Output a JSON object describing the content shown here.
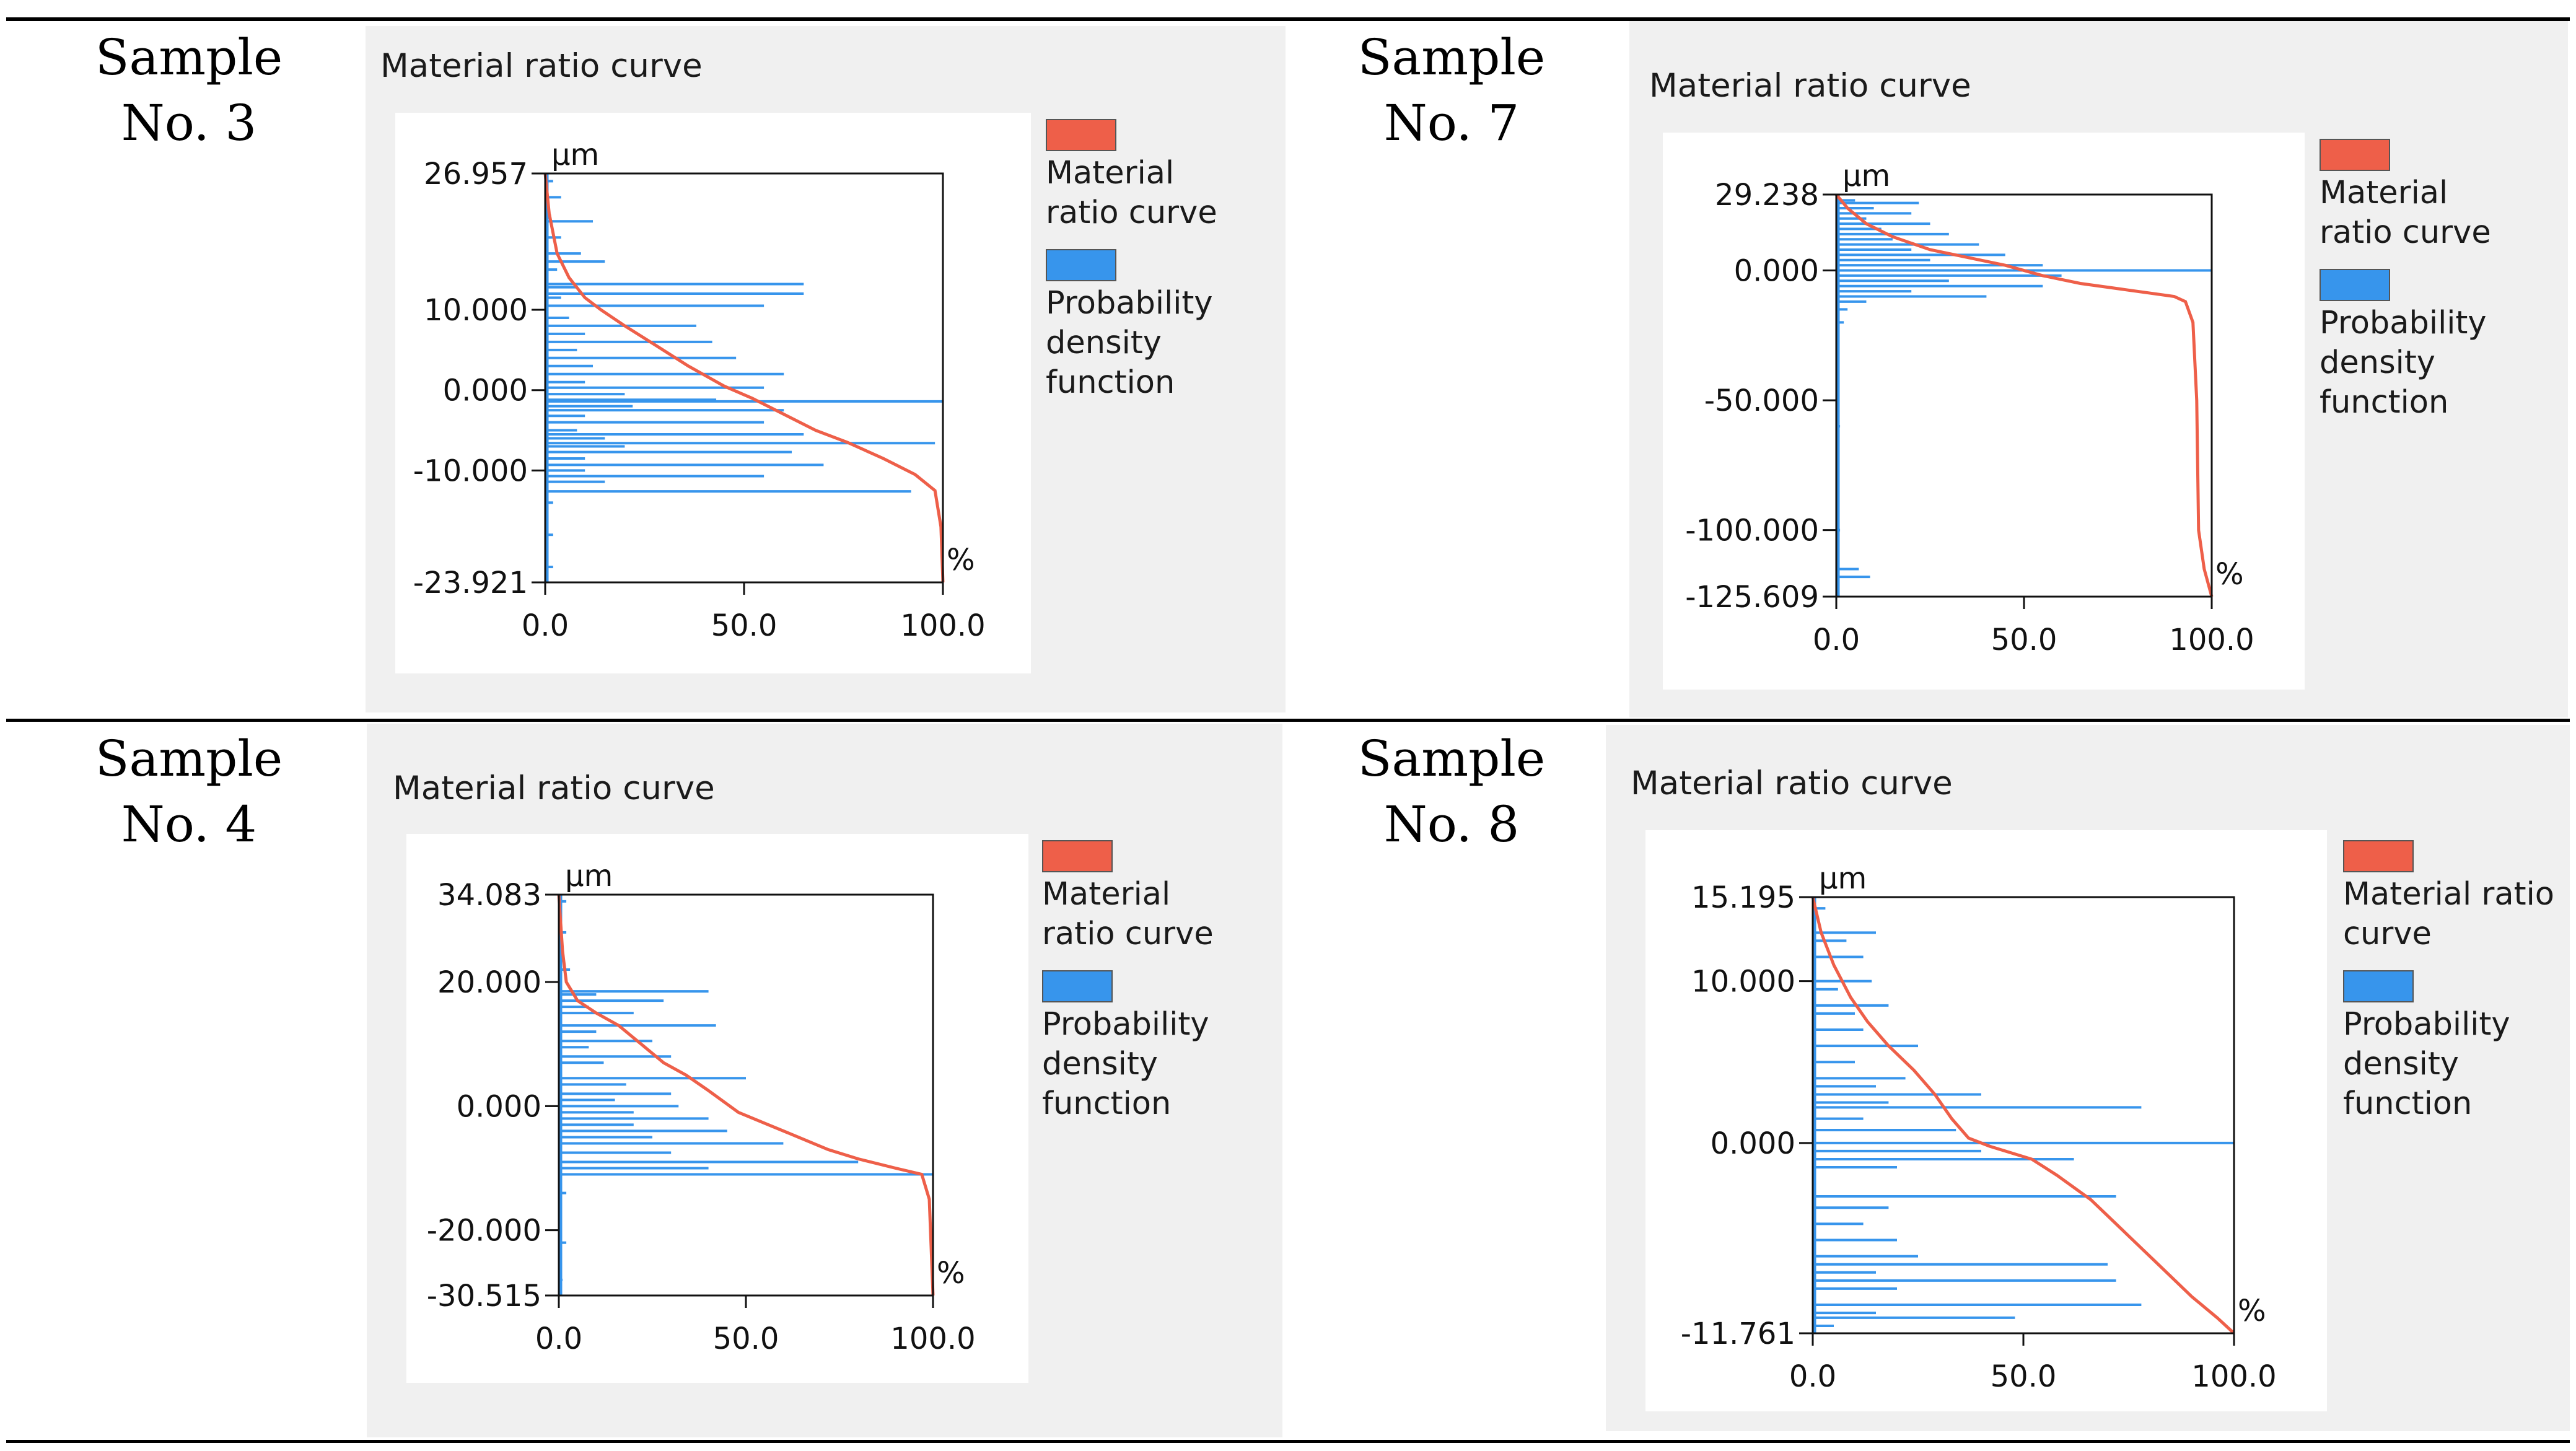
{
  "figure": {
    "panels": [
      {
        "sample_label_line1": "Sample",
        "sample_label_line2": "No. 3",
        "title": "Material ratio curve",
        "legend": {
          "material": "Material ratio curve",
          "pdf": "Probability density function"
        },
        "unit_y": "µm",
        "unit_x": "%"
      },
      {
        "sample_label_line1": "Sample",
        "sample_label_line2": "No. 7",
        "title": "Material ratio curve",
        "legend": {
          "material": "Material ratio curve",
          "pdf": "Probability density function"
        },
        "unit_y": "µm",
        "unit_x": "%"
      },
      {
        "sample_label_line1": "Sample",
        "sample_label_line2": "No. 4",
        "title": "Material ratio curve",
        "legend": {
          "material": "Material ratio curve",
          "pdf": "Probability density function"
        },
        "unit_y": "µm",
        "unit_x": "%"
      },
      {
        "sample_label_line1": "Sample",
        "sample_label_line2": "No. 8",
        "title": "Material ratio curve",
        "legend": {
          "material": "Material ratio curve",
          "pdf": "Probability density function"
        },
        "unit_y": "µm",
        "unit_x": "%"
      }
    ]
  },
  "colors": {
    "material": "#ee5f49",
    "pdf": "#3795ec",
    "axis": "#111111",
    "panel_bg": "#f0f0f0"
  },
  "chart_data": [
    {
      "type": "line",
      "title": "Material ratio curve",
      "sample": "No. 3",
      "xlabel": "%",
      "ylabel": "µm",
      "xlim": [
        0,
        100
      ],
      "ylim": [
        -23.921,
        26.957
      ],
      "xticks": [
        "0.0",
        "50.0",
        "100.0"
      ],
      "yticks": [
        {
          "value": 26.957,
          "label": "26.957"
        },
        {
          "value": 10.0,
          "label": "10.000"
        },
        {
          "value": 0.0,
          "label": "0.000"
        },
        {
          "value": -10.0,
          "label": "-10.000"
        },
        {
          "value": -23.921,
          "label": "-23.921"
        }
      ],
      "series": [
        {
          "name": "Material ratio curve",
          "type": "line",
          "points": [
            [
              0,
              26.957
            ],
            [
              1,
              22
            ],
            [
              3,
              17
            ],
            [
              6,
              14
            ],
            [
              10,
              11.5
            ],
            [
              14,
              10
            ],
            [
              20,
              8
            ],
            [
              28,
              5.5
            ],
            [
              36,
              3
            ],
            [
              45,
              0.5
            ],
            [
              52,
              -1
            ],
            [
              60,
              -3
            ],
            [
              68,
              -5
            ],
            [
              76,
              -6.5
            ],
            [
              85,
              -8.5
            ],
            [
              93,
              -10.5
            ],
            [
              98,
              -12.5
            ],
            [
              99.5,
              -17
            ],
            [
              100,
              -23.921
            ]
          ]
        },
        {
          "name": "Probability density function",
          "type": "pdf",
          "points": [
            [
              2,
              26
            ],
            [
              4,
              24
            ],
            [
              12,
              21
            ],
            [
              4,
              19
            ],
            [
              9,
              17
            ],
            [
              15,
              16
            ],
            [
              3,
              15
            ],
            [
              65,
              13.2
            ],
            [
              8,
              12.8
            ],
            [
              65,
              12
            ],
            [
              4,
              11.5
            ],
            [
              55,
              10.5
            ],
            [
              6,
              9
            ],
            [
              38,
              8
            ],
            [
              10,
              7
            ],
            [
              42,
              6
            ],
            [
              8,
              5
            ],
            [
              48,
              4
            ],
            [
              12,
              3
            ],
            [
              60,
              2
            ],
            [
              10,
              1
            ],
            [
              55,
              0.3
            ],
            [
              20,
              -0.5
            ],
            [
              43,
              -1.2
            ],
            [
              100,
              -1.4
            ],
            [
              22,
              -2
            ],
            [
              60,
              -2.5
            ],
            [
              10,
              -3.2
            ],
            [
              55,
              -4
            ],
            [
              8,
              -5
            ],
            [
              65,
              -5.5
            ],
            [
              15,
              -6
            ],
            [
              98,
              -6.6
            ],
            [
              20,
              -7
            ],
            [
              62,
              -7.7
            ],
            [
              10,
              -8.5
            ],
            [
              70,
              -9.3
            ],
            [
              10,
              -10
            ],
            [
              55,
              -10.7
            ],
            [
              15,
              -11.4
            ],
            [
              92,
              -12.6
            ],
            [
              2,
              -14
            ],
            [
              2,
              -18
            ],
            [
              2,
              -22
            ]
          ]
        }
      ]
    },
    {
      "type": "line",
      "title": "Material ratio curve",
      "sample": "No. 7",
      "xlabel": "%",
      "ylabel": "µm",
      "xlim": [
        0,
        100
      ],
      "ylim": [
        -125.609,
        29.238
      ],
      "xticks": [
        "0.0",
        "50.0",
        "100.0"
      ],
      "yticks": [
        {
          "value": 29.238,
          "label": "29.238"
        },
        {
          "value": 0.0,
          "label": "0.000"
        },
        {
          "value": -50.0,
          "label": "-50.000"
        },
        {
          "value": -100.0,
          "label": "-100.000"
        },
        {
          "value": -125.609,
          "label": "-125.609"
        }
      ],
      "series": [
        {
          "name": "Material ratio curve",
          "type": "line",
          "points": [
            [
              0,
              29.238
            ],
            [
              3,
              24
            ],
            [
              8,
              18
            ],
            [
              15,
              13
            ],
            [
              25,
              8
            ],
            [
              35,
              5
            ],
            [
              45,
              2
            ],
            [
              55,
              -2
            ],
            [
              65,
              -5
            ],
            [
              75,
              -7
            ],
            [
              85,
              -9
            ],
            [
              90,
              -10
            ],
            [
              93,
              -12
            ],
            [
              95,
              -20
            ],
            [
              96,
              -50
            ],
            [
              96.5,
              -100
            ],
            [
              98,
              -115
            ],
            [
              100,
              -125.609
            ]
          ]
        },
        {
          "name": "Probability density function",
          "type": "pdf",
          "points": [
            [
              5,
              27
            ],
            [
              22,
              26
            ],
            [
              10,
              24
            ],
            [
              20,
              22
            ],
            [
              8,
              20
            ],
            [
              25,
              18
            ],
            [
              12,
              16
            ],
            [
              30,
              14
            ],
            [
              15,
              12
            ],
            [
              38,
              10
            ],
            [
              20,
              8
            ],
            [
              45,
              6
            ],
            [
              25,
              4
            ],
            [
              55,
              2
            ],
            [
              100,
              0
            ],
            [
              60,
              -2
            ],
            [
              30,
              -4
            ],
            [
              55,
              -6
            ],
            [
              20,
              -8
            ],
            [
              40,
              -10
            ],
            [
              8,
              -12
            ],
            [
              3,
              -15
            ],
            [
              2,
              -20
            ],
            [
              1,
              -60
            ],
            [
              1,
              -100
            ],
            [
              6,
              -115
            ],
            [
              9,
              -118
            ]
          ]
        }
      ]
    },
    {
      "type": "line",
      "title": "Material ratio curve",
      "sample": "No. 4",
      "xlabel": "%",
      "ylabel": "µm",
      "xlim": [
        0,
        100
      ],
      "ylim": [
        -30.515,
        34.083
      ],
      "xticks": [
        "0.0",
        "50.0",
        "100.0"
      ],
      "yticks": [
        {
          "value": 34.083,
          "label": "34.083"
        },
        {
          "value": 20.0,
          "label": "20.000"
        },
        {
          "value": 0.0,
          "label": "0.000"
        },
        {
          "value": -20.0,
          "label": "-20.000"
        },
        {
          "value": -30.515,
          "label": "-30.515"
        }
      ],
      "series": [
        {
          "name": "Material ratio curve",
          "type": "line",
          "points": [
            [
              0,
              34.083
            ],
            [
              1,
              25
            ],
            [
              2,
              20
            ],
            [
              5,
              17
            ],
            [
              10,
              15
            ],
            [
              16,
              13
            ],
            [
              22,
              10
            ],
            [
              28,
              7
            ],
            [
              34,
              5
            ],
            [
              40,
              2.5
            ],
            [
              48,
              -1
            ],
            [
              56,
              -3
            ],
            [
              64,
              -5
            ],
            [
              72,
              -7
            ],
            [
              80,
              -8.5
            ],
            [
              90,
              -10
            ],
            [
              97,
              -11
            ],
            [
              99,
              -15
            ],
            [
              100,
              -30.515
            ]
          ]
        },
        {
          "name": "Probability density function",
          "type": "pdf",
          "points": [
            [
              2,
              33
            ],
            [
              2,
              28
            ],
            [
              3,
              22
            ],
            [
              40,
              18.5
            ],
            [
              10,
              18
            ],
            [
              28,
              17
            ],
            [
              8,
              16
            ],
            [
              20,
              15
            ],
            [
              42,
              13
            ],
            [
              10,
              12
            ],
            [
              25,
              10.5
            ],
            [
              8,
              9.5
            ],
            [
              30,
              8
            ],
            [
              12,
              7
            ],
            [
              50,
              4.5
            ],
            [
              18,
              3.5
            ],
            [
              30,
              2
            ],
            [
              15,
              1
            ],
            [
              32,
              0
            ],
            [
              20,
              -1
            ],
            [
              40,
              -2
            ],
            [
              20,
              -3
            ],
            [
              45,
              -4
            ],
            [
              25,
              -5
            ],
            [
              60,
              -6
            ],
            [
              30,
              -7.5
            ],
            [
              80,
              -9
            ],
            [
              40,
              -10
            ],
            [
              100,
              -11
            ],
            [
              2,
              -14
            ],
            [
              2,
              -22
            ],
            [
              1,
              -28
            ]
          ]
        }
      ]
    },
    {
      "type": "line",
      "title": "Material ratio curve",
      "sample": "No. 8",
      "xlabel": "%",
      "ylabel": "µm",
      "xlim": [
        0,
        100
      ],
      "ylim": [
        -11.761,
        15.195
      ],
      "xticks": [
        "0.0",
        "50.0",
        "100.0"
      ],
      "yticks": [
        {
          "value": 15.195,
          "label": "15.195"
        },
        {
          "value": 10.0,
          "label": "10.000"
        },
        {
          "value": 0.0,
          "label": "0.000"
        },
        {
          "value": -11.761,
          "label": "-11.761"
        }
      ],
      "series": [
        {
          "name": "Material ratio curve",
          "type": "line",
          "points": [
            [
              0,
              15.195
            ],
            [
              2,
              13
            ],
            [
              5,
              11
            ],
            [
              9,
              9
            ],
            [
              13,
              7.5
            ],
            [
              18,
              6
            ],
            [
              24,
              4.5
            ],
            [
              29,
              3
            ],
            [
              33,
              1.5
            ],
            [
              37,
              0.3
            ],
            [
              42,
              -0.2
            ],
            [
              52,
              -1
            ],
            [
              58,
              -2
            ],
            [
              66,
              -3.5
            ],
            [
              74,
              -5.5
            ],
            [
              82,
              -7.5
            ],
            [
              90,
              -9.5
            ],
            [
              96,
              -10.8
            ],
            [
              100,
              -11.761
            ]
          ]
        },
        {
          "name": "Probability density function",
          "type": "pdf",
          "points": [
            [
              3,
              14.5
            ],
            [
              15,
              13
            ],
            [
              8,
              12.5
            ],
            [
              12,
              11.5
            ],
            [
              14,
              10
            ],
            [
              6,
              9.5
            ],
            [
              18,
              8.5
            ],
            [
              10,
              8
            ],
            [
              12,
              7
            ],
            [
              25,
              6
            ],
            [
              10,
              5
            ],
            [
              22,
              4
            ],
            [
              15,
              3.5
            ],
            [
              40,
              3
            ],
            [
              18,
              2.5
            ],
            [
              78,
              2.2
            ],
            [
              12,
              1.5
            ],
            [
              34,
              0.8
            ],
            [
              100,
              0
            ],
            [
              40,
              -0.5
            ],
            [
              62,
              -1
            ],
            [
              20,
              -1.5
            ],
            [
              72,
              -3.3
            ],
            [
              18,
              -4
            ],
            [
              12,
              -5
            ],
            [
              20,
              -6
            ],
            [
              25,
              -7
            ],
            [
              70,
              -7.5
            ],
            [
              15,
              -8
            ],
            [
              72,
              -8.5
            ],
            [
              20,
              -9
            ],
            [
              78,
              -10
            ],
            [
              15,
              -10.5
            ],
            [
              48,
              -10.8
            ],
            [
              5,
              -11.3
            ]
          ]
        }
      ]
    }
  ]
}
